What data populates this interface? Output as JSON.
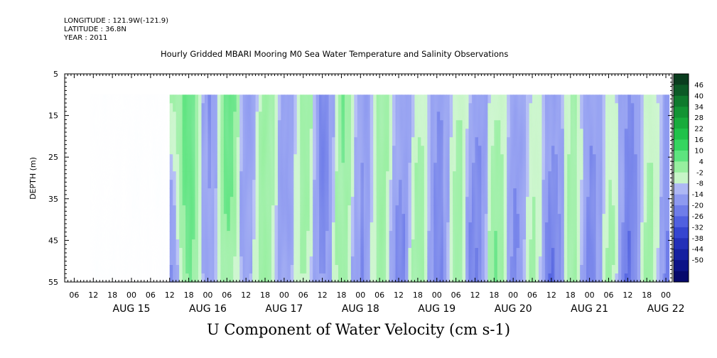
{
  "header": {
    "longitude": "LONGITUDE : 121.9W(-121.9)",
    "latitude": "LATITUDE : 36.8N",
    "year": "YEAR : 2011"
  },
  "chart_data": {
    "type": "heatmap",
    "title": "Hourly Gridded MBARI Mooring M0 Sea Water Temperature and Salinity Observations",
    "xlabel": "U Component of Water Velocity (cm s-1)",
    "ylabel": "DEPTH (m)",
    "x_range_hours": [
      "2011-08-14T03:00",
      "2011-08-22T02:00"
    ],
    "data_start": "2011-08-15T12:00",
    "data_end": "2011-08-22T01:00",
    "depth_range": [
      5,
      55
    ],
    "depth_data_range": [
      10,
      55
    ],
    "y_ticks": [
      5,
      15,
      25,
      35,
      45,
      55
    ],
    "x_tick_hours": [
      "06",
      "12",
      "18",
      "00",
      "06",
      "12",
      "18",
      "00",
      "06",
      "12",
      "18",
      "00",
      "06",
      "12",
      "18",
      "00",
      "06",
      "12",
      "18",
      "00",
      "06",
      "12",
      "18",
      "00",
      "06",
      "12",
      "18",
      "00",
      "06",
      "12",
      "18",
      "00"
    ],
    "x_day_labels": [
      "AUG 15",
      "AUG 16",
      "AUG 17",
      "AUG 18",
      "AUG 19",
      "AUG 20",
      "AUG 21",
      "AUG 22"
    ],
    "color_levels": [
      "46",
      "40",
      "34",
      "28",
      "22",
      "16",
      "10",
      "4",
      "-2",
      "-8",
      "-14",
      "-20",
      "-26",
      "-32",
      "-38",
      "-44",
      "-50"
    ],
    "colormap": [
      "#0a3d1e",
      "#0c5a26",
      "#0f7a2d",
      "#139434",
      "#18ac3c",
      "#20c24a",
      "#35d65f",
      "#5ee47f",
      "#97ef9f",
      "#c7f5c7",
      "#aeb8f4",
      "#8e9af0",
      "#6f7de9",
      "#5060e0",
      "#3545d0",
      "#2330b8",
      "#1520a0",
      "#0c1388",
      "#06086c"
    ],
    "column_profile_samples": [
      {
        "t": "08-15 12",
        "u_surface": 6,
        "u_bottom": -10
      },
      {
        "t": "08-15 18",
        "u_surface": 14,
        "u_bottom": 12
      },
      {
        "t": "08-16 00",
        "u_surface": -8,
        "u_bottom": -6
      },
      {
        "t": "08-16 06",
        "u_surface": 14,
        "u_bottom": 8
      },
      {
        "t": "08-16 12",
        "u_surface": -6,
        "u_bottom": -4
      },
      {
        "t": "08-16 18",
        "u_surface": 8,
        "u_bottom": 8
      },
      {
        "t": "08-17 00",
        "u_surface": -6,
        "u_bottom": -6
      },
      {
        "t": "08-17 06",
        "u_surface": 8,
        "u_bottom": 4
      },
      {
        "t": "08-17 12",
        "u_surface": -12,
        "u_bottom": -8
      },
      {
        "t": "08-17 18",
        "u_surface": 10,
        "u_bottom": 6
      },
      {
        "t": "08-18 00",
        "u_surface": -6,
        "u_bottom": -8
      },
      {
        "t": "08-18 06",
        "u_surface": 6,
        "u_bottom": 6
      },
      {
        "t": "08-18 12",
        "u_surface": -4,
        "u_bottom": -10
      },
      {
        "t": "08-18 18",
        "u_surface": 2,
        "u_bottom": 8
      },
      {
        "t": "08-19 00",
        "u_surface": -8,
        "u_bottom": -10
      },
      {
        "t": "08-19 06",
        "u_surface": 4,
        "u_bottom": 6
      },
      {
        "t": "08-19 12",
        "u_surface": -6,
        "u_bottom": -14
      },
      {
        "t": "08-19 18",
        "u_surface": 4,
        "u_bottom": 10
      },
      {
        "t": "08-20 00",
        "u_surface": -6,
        "u_bottom": -8
      },
      {
        "t": "08-20 06",
        "u_surface": 2,
        "u_bottom": 4
      },
      {
        "t": "08-20 12",
        "u_surface": -6,
        "u_bottom": -14
      },
      {
        "t": "08-20 18",
        "u_surface": 6,
        "u_bottom": 6
      },
      {
        "t": "08-21 00",
        "u_surface": -8,
        "u_bottom": -10
      },
      {
        "t": "08-21 06",
        "u_surface": 4,
        "u_bottom": 4
      },
      {
        "t": "08-21 12",
        "u_surface": -10,
        "u_bottom": -14
      },
      {
        "t": "08-21 18",
        "u_surface": 4,
        "u_bottom": 6
      },
      {
        "t": "08-22 00",
        "u_surface": -4,
        "u_bottom": -8
      }
    ]
  }
}
